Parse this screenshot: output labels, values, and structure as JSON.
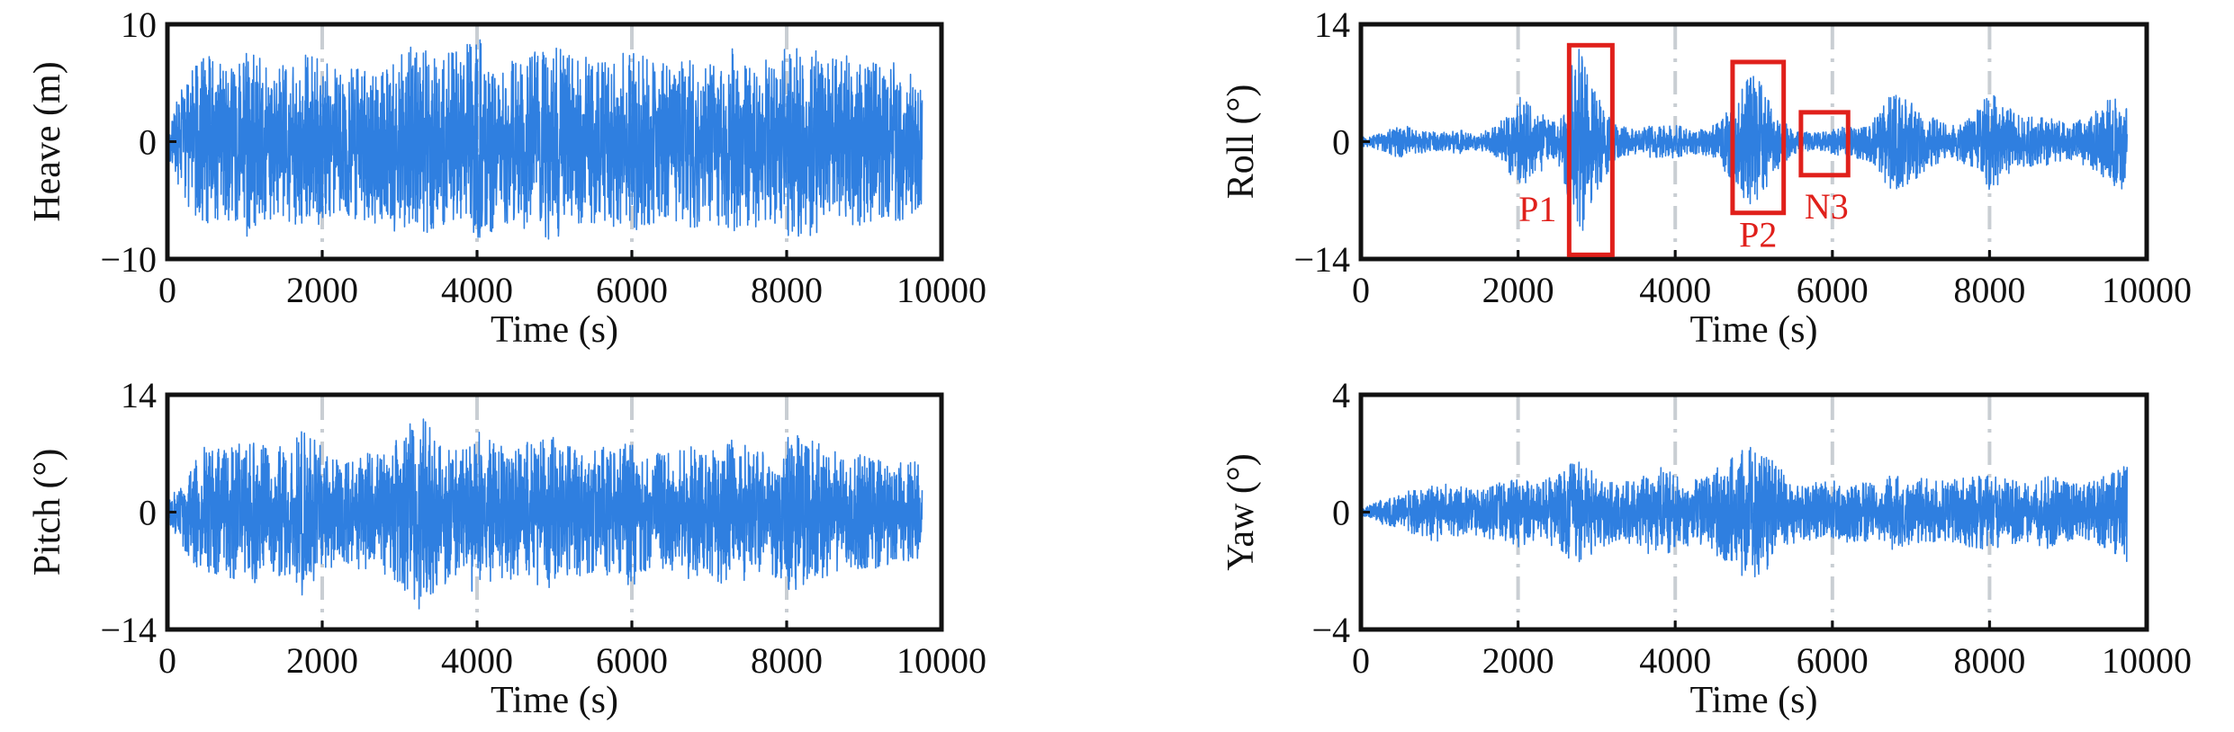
{
  "chart_data": [
    {
      "type": "line",
      "ylabel": "Heave (m)",
      "xlabel": "Time (s)",
      "xlim": [
        0,
        10000
      ],
      "ylim": [
        -10,
        10
      ],
      "xticks": [
        0,
        2000,
        4000,
        6000,
        8000,
        10000
      ],
      "yticks": [
        -10,
        0,
        10
      ],
      "ytick_labels": [
        "−10",
        "0",
        "10"
      ],
      "grid": "vertical dash-dot at 2000, 4000, 6000, 8000",
      "series": [
        {
          "color": "#2f7fe0",
          "x": [
            0,
            250,
            500,
            750,
            1000,
            1250,
            1500,
            1750,
            2000,
            2250,
            2500,
            2750,
            3000,
            3250,
            3500,
            3750,
            4000,
            4250,
            4500,
            4750,
            5000,
            5250,
            5500,
            5750,
            6000,
            6250,
            6500,
            6750,
            7000,
            7250,
            7500,
            7750,
            8000,
            8250,
            8500,
            8750,
            9000,
            9250,
            9500,
            9750
          ],
          "envelope": [
            1.5,
            5.5,
            7.5,
            6.5,
            8.5,
            7,
            6.5,
            7.5,
            7,
            6,
            7,
            8,
            7.5,
            8.5,
            7,
            8,
            9,
            7.5,
            7,
            8,
            8.5,
            7.5,
            7,
            7.5,
            8,
            7,
            6.5,
            7.5,
            7,
            8,
            7.5,
            7,
            8,
            9,
            7,
            7.5,
            7,
            6.5,
            7,
            5.5
          ]
        }
      ]
    },
    {
      "type": "line",
      "ylabel": "Roll (°)",
      "xlabel": "Time (s)",
      "xlim": [
        0,
        10000
      ],
      "ylim": [
        -14,
        14
      ],
      "xticks": [
        0,
        2000,
        4000,
        6000,
        8000,
        10000
      ],
      "yticks": [
        -14,
        0,
        14
      ],
      "ytick_labels": [
        "−14",
        "0",
        "14"
      ],
      "grid": "vertical dash-dot at 2000, 4000, 6000, 8000",
      "series": [
        {
          "color": "#2f7fe0",
          "x": [
            0,
            250,
            500,
            750,
            1000,
            1250,
            1500,
            1750,
            2000,
            2250,
            2500,
            2750,
            3000,
            3250,
            3500,
            3750,
            4000,
            4250,
            4500,
            4750,
            5000,
            5250,
            5500,
            5750,
            6000,
            6250,
            6500,
            6750,
            7000,
            7250,
            7500,
            7750,
            8000,
            8250,
            8500,
            8750,
            9000,
            9250,
            9500,
            9750
          ],
          "envelope": [
            0.5,
            1,
            2,
            1.5,
            1,
            1.5,
            1,
            2,
            5.5,
            4,
            2,
            12.5,
            6,
            2,
            1.5,
            2,
            2,
            1.5,
            2,
            5,
            9,
            4,
            1.5,
            1,
            1.5,
            2,
            2.5,
            6,
            5,
            3,
            2,
            3,
            6,
            4,
            3,
            3,
            2,
            3,
            5,
            6
          ]
        }
      ],
      "annotations": [
        {
          "label": "P1",
          "x_range": [
            2650,
            3200
          ],
          "y_range": [
            -13.5,
            11.5
          ]
        },
        {
          "label": "P2",
          "x_range": [
            4730,
            5380
          ],
          "y_range": [
            -8.5,
            9.5
          ]
        },
        {
          "label": "N3",
          "x_range": [
            5600,
            6200
          ],
          "y_range": [
            -4,
            3.5
          ]
        }
      ]
    },
    {
      "type": "line",
      "ylabel": "Pitch (°)",
      "xlabel": "Time (s)",
      "xlim": [
        0,
        10000
      ],
      "ylim": [
        -14,
        14
      ],
      "xticks": [
        0,
        2000,
        4000,
        6000,
        8000,
        10000
      ],
      "yticks": [
        -14,
        0,
        14
      ],
      "ytick_labels": [
        "−14",
        "0",
        "14"
      ],
      "grid": "vertical dash-dot at 2000, 4000, 6000, 8000",
      "series": [
        {
          "color": "#2f7fe0",
          "x": [
            0,
            250,
            500,
            750,
            1000,
            1250,
            1500,
            1750,
            2000,
            2250,
            2500,
            2750,
            3000,
            3250,
            3500,
            3750,
            4000,
            4250,
            4500,
            4750,
            5000,
            5250,
            5500,
            5750,
            6000,
            6250,
            6500,
            6750,
            7000,
            7250,
            7500,
            7750,
            8000,
            8250,
            8500,
            8750,
            9000,
            9250,
            9500,
            9750
          ],
          "envelope": [
            1,
            5,
            8,
            7.5,
            9,
            8,
            8,
            10,
            8,
            6,
            7,
            7,
            9,
            12,
            9,
            8,
            10,
            8,
            8,
            9,
            9,
            8,
            7.5,
            8,
            9,
            7,
            7,
            8,
            8,
            9,
            8,
            7,
            10,
            9,
            8,
            6.5,
            7,
            6.5,
            6,
            6
          ]
        }
      ]
    },
    {
      "type": "line",
      "ylabel": "Yaw (°)",
      "xlabel": "Time (s)",
      "xlim": [
        0,
        10000
      ],
      "ylim": [
        -4,
        4
      ],
      "xticks": [
        0,
        2000,
        4000,
        6000,
        8000,
        10000
      ],
      "yticks": [
        -4,
        0,
        4
      ],
      "ytick_labels": [
        "−4",
        "0",
        "4"
      ],
      "grid": "vertical dash-dot at 2000, 4000, 6000, 8000",
      "series": [
        {
          "color": "#2f7fe0",
          "x": [
            0,
            250,
            500,
            750,
            1000,
            1250,
            1500,
            1750,
            2000,
            2250,
            2500,
            2750,
            3000,
            3250,
            3500,
            3750,
            4000,
            4250,
            4500,
            4750,
            5000,
            5250,
            5500,
            5750,
            6000,
            6250,
            6500,
            6750,
            7000,
            7250,
            7500,
            7750,
            8000,
            8250,
            8500,
            8750,
            9000,
            9250,
            9500,
            9750
          ],
          "envelope": [
            0.1,
            0.4,
            0.6,
            0.9,
            1,
            0.9,
            0.8,
            1,
            1.2,
            1,
            1.3,
            1.8,
            1.3,
            1,
            1.1,
            1.6,
            1.3,
            1.1,
            1.5,
            2,
            2.4,
            1.8,
            1.1,
            1,
            1.1,
            1,
            1,
            1.3,
            1.1,
            1.2,
            1.1,
            1.2,
            1.3,
            1.1,
            1,
            1.3,
            1,
            1,
            1.3,
            1.8
          ]
        }
      ]
    }
  ]
}
